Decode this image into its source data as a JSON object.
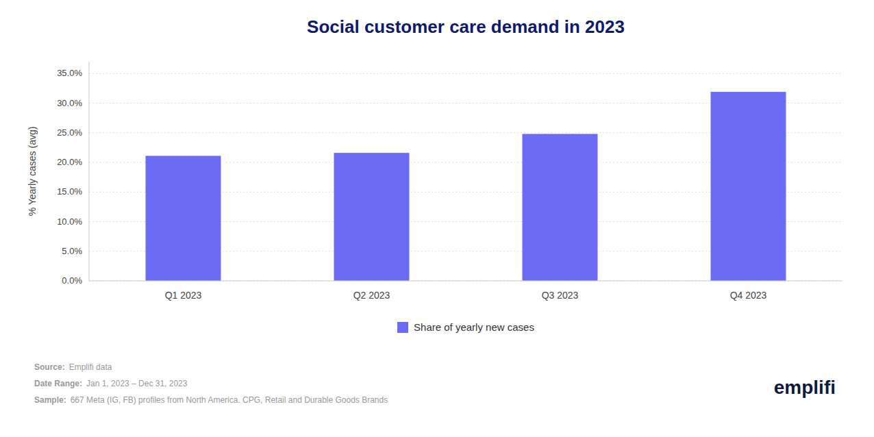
{
  "chart_data": {
    "type": "bar",
    "title": "Social customer care demand in 2023",
    "categories": [
      "Q1 2023",
      "Q2 2023",
      "Q3 2023",
      "Q4 2023"
    ],
    "series": [
      {
        "name": "Share of yearly new cases",
        "color": "#6B6BF5",
        "values": [
          0.211,
          0.216,
          0.248,
          0.319
        ]
      }
    ],
    "ylabel": "% Yearly cases (avg)",
    "ylim": [
      0,
      0.37
    ],
    "yticks": [
      {
        "value": 0.0,
        "label": "0.0%"
      },
      {
        "value": 0.05,
        "label": "5.0%"
      },
      {
        "value": 0.1,
        "label": "10.0%"
      },
      {
        "value": 0.15,
        "label": "15.0%"
      },
      {
        "value": 0.2,
        "label": "20.0%"
      },
      {
        "value": 0.25,
        "label": "25.0%"
      },
      {
        "value": 0.3,
        "label": "30.0%"
      },
      {
        "value": 0.35,
        "label": "35.0%"
      }
    ],
    "grid": true,
    "legend": "bottom",
    "annotations": [
      "Source:",
      "Emplifi data",
      "Date Range:",
      "Jan 1, 2023 – Dec 31, 2023",
      "Sample:",
      "667 Meta (IG, FB) profiles from North America. CPG, Retail and Durable Goods Brands",
      "emplifi"
    ]
  }
}
